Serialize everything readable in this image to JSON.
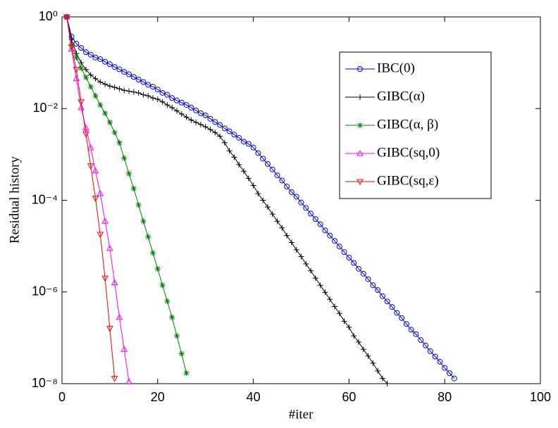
{
  "chart_data": {
    "type": "line",
    "xlabel": "#iter",
    "ylabel": "Residual history",
    "xlim": [
      0,
      100
    ],
    "xticks": [
      0,
      20,
      40,
      60,
      80,
      100
    ],
    "ylim": [
      1e-08,
      1
    ],
    "yscale": "log",
    "yticks": [
      {
        "value": 1e-08,
        "label": "10⁻⁸"
      },
      {
        "value": 1e-06,
        "label": "10⁻⁶"
      },
      {
        "value": 0.0001,
        "label": "10⁻⁴"
      },
      {
        "value": 0.01,
        "label": "10⁻²"
      },
      {
        "value": 1,
        "label": "10⁰"
      }
    ],
    "legend": "upper right",
    "x": [
      1,
      2,
      3,
      4,
      5,
      6,
      7,
      8,
      9,
      10,
      11,
      12,
      13,
      14,
      15,
      16,
      17,
      18,
      19,
      20,
      21,
      22,
      23,
      24,
      25,
      26,
      27,
      28,
      29,
      30,
      31,
      32,
      33,
      34,
      35,
      36,
      37,
      38,
      39,
      40,
      41,
      42,
      43,
      44,
      45,
      46,
      47,
      48,
      49,
      50,
      51,
      52,
      53,
      54,
      55,
      56,
      57,
      58,
      59,
      60,
      61,
      62,
      63,
      64,
      65,
      66,
      67,
      68,
      69,
      70,
      71,
      72,
      73,
      74,
      75,
      76,
      77,
      78,
      79,
      80,
      81,
      82
    ],
    "series": [
      {
        "name": "IBC(0)",
        "color": "#0000ff",
        "marker": "circle",
        "values": [
          1,
          0.37,
          0.26,
          0.21,
          0.17,
          0.15,
          0.13,
          0.12,
          0.105,
          0.093,
          0.081,
          0.072,
          0.063,
          0.056,
          0.049,
          0.043,
          0.038,
          0.033,
          0.03,
          0.026,
          0.022,
          0.02,
          0.017,
          0.015,
          0.0135,
          0.012,
          0.0105,
          0.0091,
          0.0079,
          0.0071,
          0.006,
          0.0051,
          0.0044,
          0.0037,
          0.0032,
          0.0027,
          0.0023,
          0.0019,
          0.0017,
          0.00141,
          0.00107,
          0.00081,
          0.00062,
          0.00047,
          0.00035,
          0.00027,
          0.0002,
          0.00015,
          0.00012,
          8.9e-05,
          6.8e-05,
          5.1e-05,
          3.9e-05,
          3e-05,
          2.2e-05,
          1.7e-05,
          1.3e-05,
          9.8e-06,
          7.4e-06,
          5.6e-06,
          4.3e-06,
          3.2e-06,
          2.5e-06,
          1.9e-06,
          1.4e-06,
          1.1e-06,
          8.1e-07,
          6.2e-07,
          4.7e-07,
          3.5e-07,
          2.7e-07,
          2e-07,
          1.5e-07,
          1.2e-07,
          8.9e-08,
          6.8e-08,
          5.1e-08,
          3.9e-08,
          3e-08,
          2.2e-08,
          1.7e-08,
          1.3e-08
        ]
      },
      {
        "name": "GIBC(α)",
        "color": "#000000",
        "marker": "plus",
        "values": [
          1,
          0.32,
          0.16,
          0.1,
          0.071,
          0.054,
          0.045,
          0.038,
          0.034,
          0.031,
          0.029,
          0.027,
          0.025,
          0.024,
          0.023,
          0.022,
          0.02,
          0.019,
          0.017,
          0.016,
          0.014,
          0.012,
          0.0105,
          0.0089,
          0.0076,
          0.0065,
          0.0056,
          0.005,
          0.0045,
          0.004,
          0.0035,
          0.003,
          0.0025,
          0.0018,
          0.0012,
          0.00087,
          0.0006,
          0.00043,
          0.0003,
          0.00021,
          0.00014,
          0.0001,
          7.1e-05,
          5e-05,
          3.5e-05,
          2.5e-05,
          1.7e-05,
          1.2e-05,
          8.3e-06,
          5.9e-06,
          4.1e-06,
          2.9e-06,
          2e-06,
          1.4e-06,
          9.8e-07,
          6.9e-07,
          4.8e-07,
          3.4e-07,
          2.3e-07,
          1.7e-07,
          1.1e-07,
          8.1e-08,
          5.6e-08,
          4e-08,
          2.8e-08,
          1.9e-08,
          1.3e-08,
          1e-08,
          null,
          null,
          null,
          null,
          null,
          null,
          null,
          null,
          null,
          null,
          null,
          null,
          null,
          null
        ]
      },
      {
        "name": "GIBC(α, β)",
        "color": "#008000",
        "marker": "star",
        "values": [
          1,
          0.25,
          0.13,
          0.076,
          0.048,
          0.03,
          0.019,
          0.012,
          0.0079,
          0.005,
          0.003,
          0.0018,
          0.00083,
          0.00038,
          0.00018,
          7.9e-05,
          3.5e-05,
          1.6e-05,
          7.1e-06,
          3.2e-06,
          1.4e-06,
          6.3e-07,
          2.8e-07,
          1.1e-07,
          4.5e-08,
          1.7e-08,
          null,
          null,
          null,
          null,
          null,
          null,
          null,
          null,
          null,
          null,
          null,
          null,
          null,
          null,
          null,
          null,
          null,
          null,
          null,
          null,
          null,
          null,
          null,
          null,
          null,
          null,
          null,
          null,
          null,
          null,
          null,
          null,
          null,
          null,
          null,
          null,
          null,
          null,
          null,
          null,
          null,
          null,
          null,
          null,
          null,
          null,
          null,
          null,
          null,
          null,
          null,
          null,
          null,
          null,
          null,
          null
        ]
      },
      {
        "name": "GIBC(sq,0)",
        "color": "#ff00ff",
        "marker": "triangle-up",
        "values": [
          1,
          0.2,
          0.045,
          0.0105,
          0.0038,
          0.0014,
          0.00044,
          0.00014,
          3.5e-05,
          8.9e-06,
          1.6e-06,
          2.8e-07,
          5.6e-08,
          1.1e-08,
          null,
          null,
          null,
          null,
          null,
          null,
          null,
          null,
          null,
          null,
          null,
          null,
          null,
          null,
          null,
          null,
          null,
          null,
          null,
          null,
          null,
          null,
          null,
          null,
          null,
          null,
          null,
          null,
          null,
          null,
          null,
          null,
          null,
          null,
          null,
          null,
          null,
          null,
          null,
          null,
          null,
          null,
          null,
          null,
          null,
          null,
          null,
          null,
          null,
          null,
          null,
          null,
          null,
          null,
          null,
          null,
          null,
          null,
          null,
          null,
          null,
          null,
          null,
          null,
          null,
          null,
          null,
          null
        ]
      },
      {
        "name": "GIBC(sq,ε)",
        "color": "#ff0000",
        "marker": "triangle-down",
        "values": [
          1,
          0.22,
          0.071,
          0.014,
          0.0028,
          0.00056,
          0.00011,
          1.8e-05,
          2e-06,
          1.6e-07,
          1.3e-08,
          null,
          null,
          null,
          null,
          null,
          null,
          null,
          null,
          null,
          null,
          null,
          null,
          null,
          null,
          null,
          null,
          null,
          null,
          null,
          null,
          null,
          null,
          null,
          null,
          null,
          null,
          null,
          null,
          null,
          null,
          null,
          null,
          null,
          null,
          null,
          null,
          null,
          null,
          null,
          null,
          null,
          null,
          null,
          null,
          null,
          null,
          null,
          null,
          null,
          null,
          null,
          null,
          null,
          null,
          null,
          null,
          null,
          null,
          null,
          null,
          null,
          null,
          null,
          null,
          null,
          null,
          null,
          null,
          null,
          null,
          null
        ]
      }
    ]
  }
}
